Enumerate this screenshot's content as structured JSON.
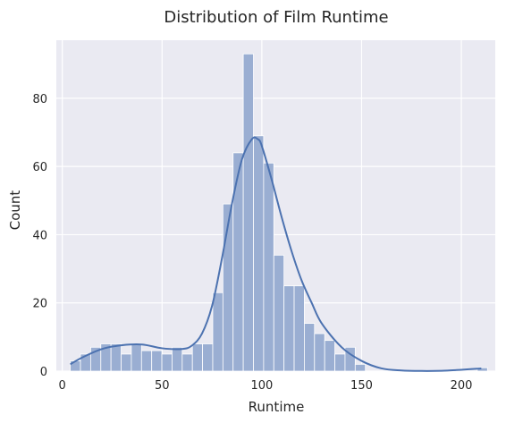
{
  "chart_data": {
    "type": "bar",
    "title": "Distribution of Film Runtime",
    "xlabel": "Runtime",
    "ylabel": "Count",
    "xlim": [
      -3,
      217
    ],
    "ylim": [
      0,
      97
    ],
    "xticks": [
      0,
      50,
      100,
      150,
      200
    ],
    "yticks": [
      0,
      20,
      40,
      60,
      80
    ],
    "grid": true,
    "bin_start": 4,
    "bin_width": 5.1,
    "counts": [
      3,
      5,
      7,
      8,
      8,
      5,
      8,
      6,
      6,
      5,
      7,
      5,
      8,
      8,
      23,
      49,
      64,
      93,
      69,
      61,
      34,
      25,
      25,
      14,
      11,
      9,
      5,
      7,
      2,
      0,
      0,
      0,
      0,
      0,
      0,
      0,
      0,
      0,
      0,
      0,
      1
    ],
    "kde": {
      "x": [
        4,
        10,
        20,
        30,
        40,
        50,
        60,
        65,
        70,
        75,
        80,
        85,
        90,
        95,
        98,
        100,
        105,
        110,
        115,
        120,
        125,
        130,
        140,
        150,
        160,
        170,
        180,
        190,
        200,
        210
      ],
      "y": [
        2,
        4,
        6.5,
        7.6,
        7.8,
        6.7,
        6.5,
        7.5,
        11,
        19,
        33,
        49,
        62,
        68,
        68,
        66,
        56,
        45,
        35,
        26.5,
        20,
        14,
        7,
        3,
        0.8,
        0.2,
        0.05,
        0.1,
        0.4,
        0.8
      ]
    },
    "colors": {
      "bar_fill": "#9aaed2",
      "bar_stroke": "#ffffff",
      "kde_line": "#4c72b0",
      "plot_bg": "#eaeaf2",
      "grid": "#ffffff"
    }
  }
}
